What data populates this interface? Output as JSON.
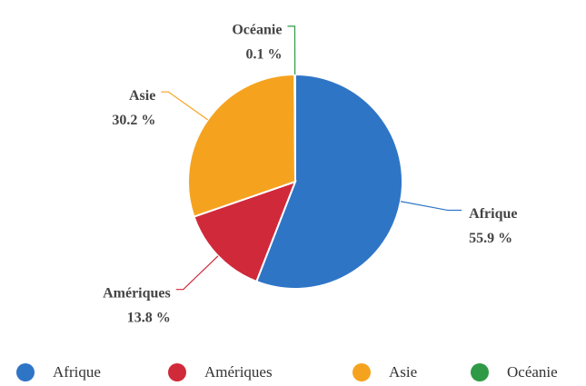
{
  "chart_data": {
    "type": "pie",
    "categories": [
      "Afrique",
      "Amériques",
      "Asie",
      "Océanie"
    ],
    "values": [
      55.9,
      13.8,
      30.2,
      0.1
    ],
    "value_labels": [
      "55.9 %",
      "13.8 %",
      "30.2 %",
      "0.1 %"
    ],
    "colors": [
      "#2f75c6",
      "#d0293a",
      "#f5a31f",
      "#2f9a45"
    ],
    "legend": "bottom"
  }
}
